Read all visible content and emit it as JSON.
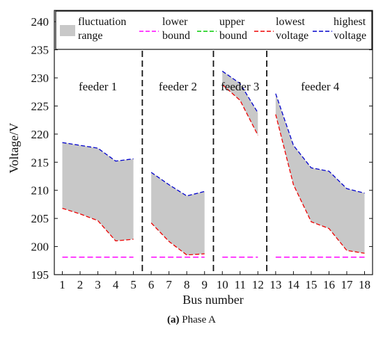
{
  "caption": {
    "tag": "(a)",
    "text": " Phase A"
  },
  "chart_data": {
    "type": "line",
    "xlabel": "Bus number",
    "ylabel": "Voltage/V",
    "ylim": [
      195,
      242
    ],
    "yticks": [
      195,
      200,
      205,
      210,
      215,
      220,
      225,
      230,
      235,
      240
    ],
    "xticks": [
      1,
      2,
      3,
      4,
      5,
      6,
      7,
      8,
      9,
      10,
      11,
      12,
      13,
      14,
      15,
      16,
      17,
      18
    ],
    "grid": false,
    "legend": {
      "placement": "top",
      "entries": [
        {
          "label": [
            "fluctuation",
            "range"
          ],
          "kind": "fill",
          "color": "#c8c8c8"
        },
        {
          "label": [
            "lower",
            "bound"
          ],
          "kind": "dash",
          "color": "#ff00ff"
        },
        {
          "label": [
            "upper",
            "bound"
          ],
          "kind": "dash",
          "color": "#00cc00"
        },
        {
          "label": [
            "lowest",
            "voltage"
          ],
          "kind": "dash",
          "color": "#ee0000"
        },
        {
          "label": [
            "highest",
            "voltage"
          ],
          "kind": "dash",
          "color": "#0000cc"
        }
      ]
    },
    "upper_bound": 235.4,
    "lower_bound": 198.1,
    "feeders": [
      {
        "label": "feeder 1",
        "x": [
          1,
          2,
          3,
          4,
          5
        ],
        "highest": [
          218.5,
          218,
          217.5,
          215.2,
          215.6
        ],
        "lowest": [
          206.8,
          205.8,
          204.6,
          201.0,
          201.3
        ]
      },
      {
        "label": "feeder 2",
        "x": [
          6,
          7,
          8,
          9
        ],
        "highest": [
          213.2,
          211.0,
          209.0,
          209.8
        ],
        "lowest": [
          204.2,
          200.9,
          198.5,
          198.7
        ]
      },
      {
        "label": "feeder 3",
        "x": [
          10,
          11,
          12
        ],
        "highest": [
          231.2,
          229.0,
          223.8
        ],
        "lowest": [
          228.8,
          226.0,
          219.8
        ]
      },
      {
        "label": "feeder 4",
        "x": [
          13,
          14,
          15,
          16,
          17,
          18
        ],
        "highest": [
          227.2,
          218.0,
          214.0,
          213.4,
          210.3,
          209.5
        ],
        "lowest": [
          223.5,
          211.0,
          204.4,
          203.2,
          199.3,
          198.8
        ]
      }
    ],
    "dividers": [
      5.5,
      9.5,
      12.5
    ],
    "colors": {
      "fill": "#c8c8c8",
      "lower": "#ff00ff",
      "upper": "#00cc00",
      "lowest": "#ee0000",
      "highest": "#0000cc"
    }
  }
}
